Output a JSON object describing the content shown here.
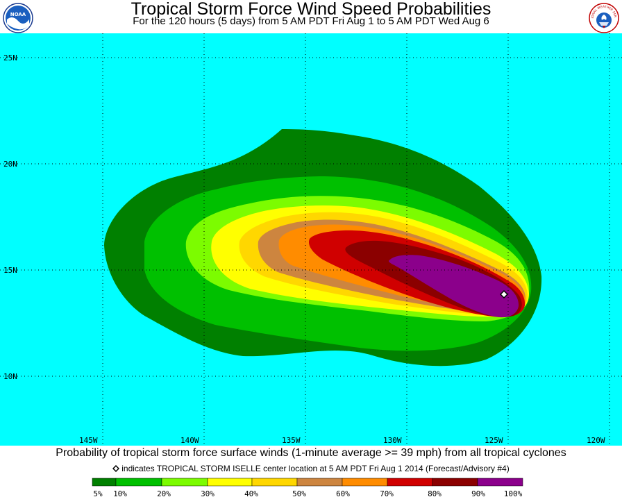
{
  "header": {
    "title": "Tropical Storm Force Wind Speed Probabilities",
    "subtitle": "For the 120 hours (5 days) from 5 AM PDT Fri Aug 1 to 5 AM PDT Wed Aug 6",
    "logo_left_icon": "noaa-logo",
    "logo_right_icon": "national-weather-service-logo",
    "logo_right_text": "NATIONAL WEATHER SERVICE"
  },
  "map": {
    "background_color": "#00ffff",
    "grid": true,
    "lat_labels": [
      "25N",
      "20N",
      "15N",
      "10N"
    ],
    "lon_labels": [
      "145W",
      "140W",
      "135W",
      "130W",
      "125W",
      "120W"
    ],
    "storm_center": {
      "lat": 13.9,
      "lon": -125.0,
      "marker": "diamond-icon"
    }
  },
  "footer": {
    "description": "Probability of tropical storm force surface winds (1-minute average >= 39 mph) from all tropical cyclones",
    "marker_note": "indicates TROPICAL STORM ISELLE center location at 5 AM PDT Fri Aug 1 2014 (Forecast/Advisory #4)"
  },
  "legend": {
    "labels": [
      "5%",
      "10%",
      "20%",
      "30%",
      "40%",
      "50%",
      "60%",
      "70%",
      "80%",
      "90%",
      "100%"
    ],
    "colors": [
      "#008000",
      "#00c000",
      "#7cfc00",
      "#ffff00",
      "#ffd700",
      "#cd853f",
      "#ff8c00",
      "#d00000",
      "#8b0000",
      "#8b008b"
    ]
  }
}
